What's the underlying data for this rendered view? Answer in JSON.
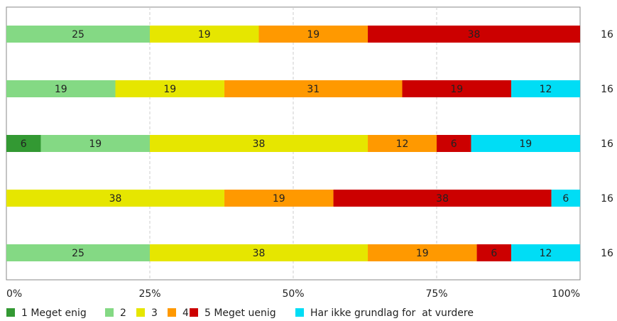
{
  "chart_data": {
    "type": "bar",
    "orientation": "horizontal",
    "stacked": true,
    "normalized_percent": true,
    "xlim": [
      0,
      100
    ],
    "xticks": [
      "0%",
      "25%",
      "50%",
      "75%",
      "100%"
    ],
    "grid": "vertical-dashed",
    "legend_position": "bottom-left",
    "series": [
      {
        "name": "1 Meget enig",
        "color": "#339933",
        "values": [
          0,
          0,
          6,
          0,
          0
        ]
      },
      {
        "name": "2",
        "color": "#84d984",
        "values": [
          25,
          19,
          19,
          0,
          25
        ]
      },
      {
        "name": "3",
        "color": "#e6e600",
        "values": [
          19,
          19,
          38,
          38,
          38
        ]
      },
      {
        "name": "4",
        "color": "#ff9900",
        "values": [
          19,
          31,
          12,
          19,
          19
        ]
      },
      {
        "name": "5 Meget uenig",
        "color": "#cc0000",
        "values": [
          38,
          19,
          6,
          38,
          6
        ]
      },
      {
        "name": "Har ikke grundlag for  at vurdere",
        "color": "#00ddf5",
        "values": [
          0,
          12,
          19,
          6,
          12
        ]
      }
    ],
    "counts": [
      "16",
      "16",
      "16",
      "16",
      "16"
    ]
  }
}
